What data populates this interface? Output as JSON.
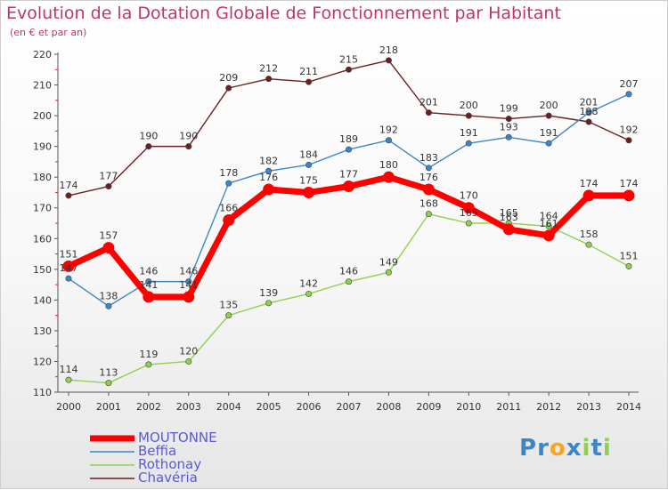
{
  "chart_data": {
    "type": "line",
    "title": "Evolution de la Dotation Globale de Fonctionnement par Habitant",
    "subtitle": "(en € et par an)",
    "xlabel": "",
    "ylabel": "",
    "x": [
      "2000",
      "2001",
      "2002",
      "2003",
      "2004",
      "2005",
      "2006",
      "2007",
      "2008",
      "2009",
      "2010",
      "2011",
      "2012",
      "2013",
      "2014"
    ],
    "ylim": [
      110,
      220
    ],
    "yticks": [
      110,
      120,
      130,
      140,
      150,
      160,
      170,
      180,
      190,
      200,
      210,
      220
    ],
    "grid": false,
    "legend_position": "bottom-left",
    "series": [
      {
        "name": "MOUTONNE",
        "color": "#ff0000",
        "values": [
          151,
          157,
          141,
          141,
          166,
          176,
          175,
          177,
          180,
          176,
          170,
          163,
          161,
          174,
          174
        ]
      },
      {
        "name": "Beffia",
        "color": "#3d86c6",
        "values": [
          147,
          138,
          146,
          146,
          178,
          182,
          184,
          189,
          192,
          183,
          191,
          193,
          191,
          201,
          207
        ]
      },
      {
        "name": "Rothonay",
        "color": "#8fd14f",
        "values": [
          114,
          113,
          119,
          120,
          135,
          139,
          142,
          146,
          149,
          168,
          165,
          165,
          164,
          158,
          151
        ]
      },
      {
        "name": "Chavéria",
        "color": "#6b1f1f",
        "values": [
          174,
          177,
          190,
          190,
          209,
          212,
          211,
          215,
          218,
          201,
          200,
          199,
          200,
          198,
          192
        ]
      }
    ]
  },
  "logo": {
    "text": "Proxiti",
    "letters": [
      {
        "ch": "P",
        "color": "#3d86c6"
      },
      {
        "ch": "r",
        "color": "#3d86c6"
      },
      {
        "ch": "o",
        "color": "#f5a623"
      },
      {
        "ch": "x",
        "color": "#3d86c6"
      },
      {
        "ch": "i",
        "color": "#8fd14f"
      },
      {
        "ch": "t",
        "color": "#3d86c6"
      },
      {
        "ch": "i",
        "color": "#8fd14f"
      }
    ]
  }
}
